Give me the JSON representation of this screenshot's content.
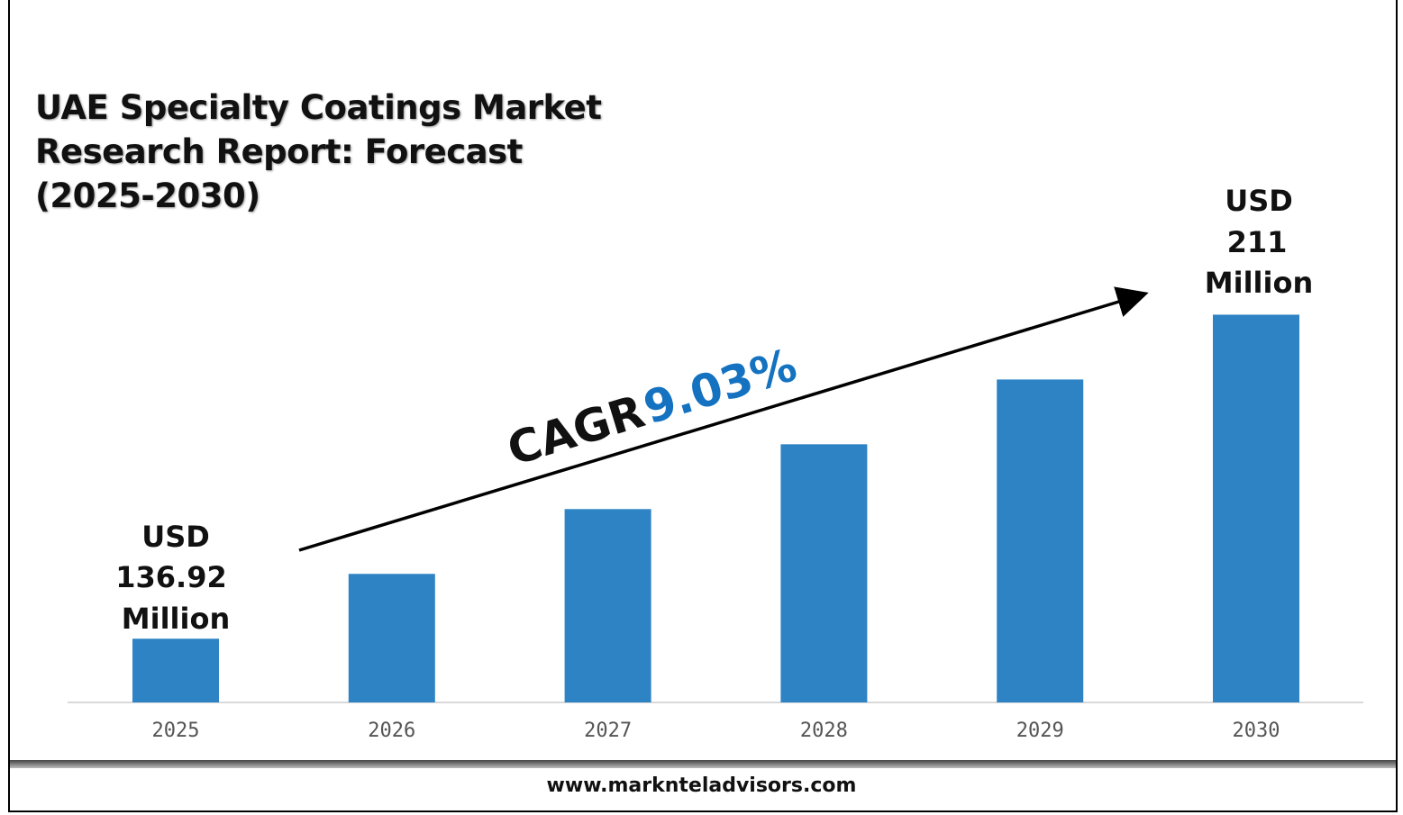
{
  "title_lines": [
    "UAE Specialty Coatings Market",
    "Research Report: Forecast",
    "(2025-2030)"
  ],
  "footer": "www.marknteladvisors.com",
  "colors": {
    "bar": "#2E83C4",
    "cagr_value": "#1472C0",
    "text": "#111111",
    "axis": "#D9D9D9"
  },
  "chart_data": {
    "type": "bar",
    "title": "UAE Specialty Coatings Market Research Report: Forecast (2025-2030)",
    "categories": [
      "2025",
      "2026",
      "2027",
      "2028",
      "2029",
      "2030"
    ],
    "values": [
      136.92,
      151.74,
      166.55,
      181.37,
      196.18,
      211
    ],
    "unit": "USD Million",
    "ylim": [
      122.35,
      215
    ],
    "xlabel": "",
    "ylabel": "",
    "grid": false,
    "annotations": {
      "start": [
        "USD",
        "136.92",
        "Million"
      ],
      "end": [
        "USD",
        "211",
        "Million"
      ],
      "cagr_label": "CAGR",
      "cagr_value": "9.03%"
    }
  }
}
